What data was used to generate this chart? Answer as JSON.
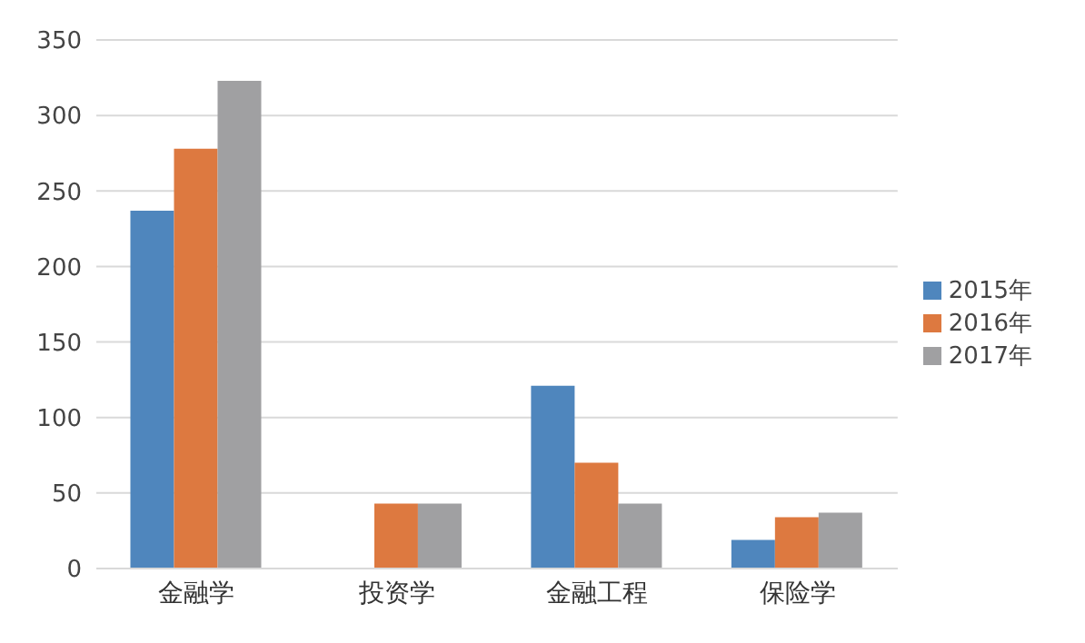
{
  "chart_data": {
    "type": "bar",
    "categories": [
      "金融学",
      "投资学",
      "金融工程",
      "保险学"
    ],
    "series": [
      {
        "name": "2015年",
        "color": "#4f86bd",
        "values": [
          237,
          null,
          121,
          19
        ]
      },
      {
        "name": "2016年",
        "color": "#dd7940",
        "values": [
          278,
          43,
          70,
          34
        ]
      },
      {
        "name": "2017年",
        "color": "#a0a0a2",
        "values": [
          323,
          43,
          43,
          37
        ]
      }
    ],
    "ylim": [
      0,
      350
    ],
    "yticks": [
      0,
      50,
      100,
      150,
      200,
      250,
      300,
      350
    ],
    "grid": "y",
    "legend": "right"
  }
}
